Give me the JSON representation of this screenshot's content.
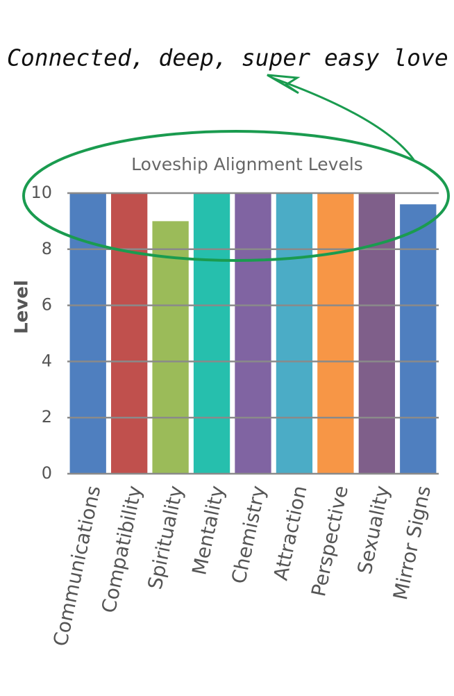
{
  "chart_data": {
    "type": "bar",
    "title": "Loveship Alignment Levels",
    "y_label": "Level",
    "annotation": "Connected, deep, super easy love",
    "categories": [
      "Communications",
      "Compatibility",
      "Spirituality",
      "Mentality",
      "Chemistry",
      "Attraction",
      "Perspective",
      "Sexuality",
      "Mirror Signs"
    ],
    "values": [
      10,
      10,
      9,
      10,
      10,
      10,
      10,
      10,
      9.6
    ],
    "colors": [
      "#4f7fbf",
      "#c0504d",
      "#9bbb59",
      "#26bfad",
      "#8064a2",
      "#4bacc6",
      "#f79646",
      "#7f5f8a",
      "#4f7fbf"
    ],
    "ylim": [
      0,
      10
    ],
    "yticks": [
      0,
      2,
      4,
      6,
      8,
      10
    ],
    "grid": true
  }
}
